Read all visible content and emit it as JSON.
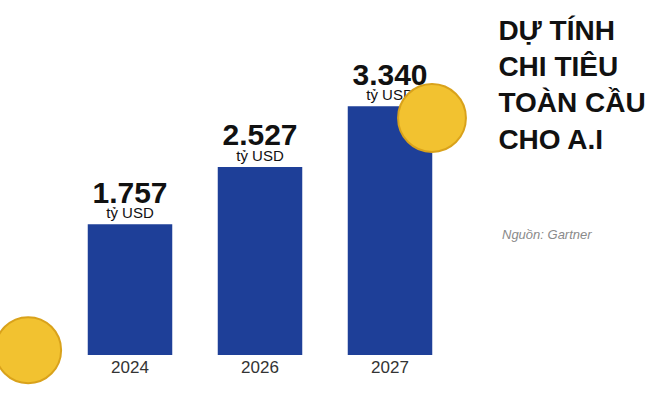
{
  "chart_data": {
    "type": "bar",
    "title": "DỰ TÍNH CHI TIÊU TOÀN CẦU CHO A.I",
    "annotations": [
      "Nguồn: Gartner"
    ],
    "categories": [
      "2024",
      "2026",
      "2027"
    ],
    "values": [
      1757,
      2527,
      3340
    ],
    "value_labels": [
      "1.757 tỷ USD",
      "2.527 tỷ USD",
      "3.340 tỷ USD"
    ],
    "color": "#1e3f98",
    "ylim": [
      0,
      4500
    ],
    "grid": false,
    "data_labels": true,
    "tick_labels": "x"
  }
}
